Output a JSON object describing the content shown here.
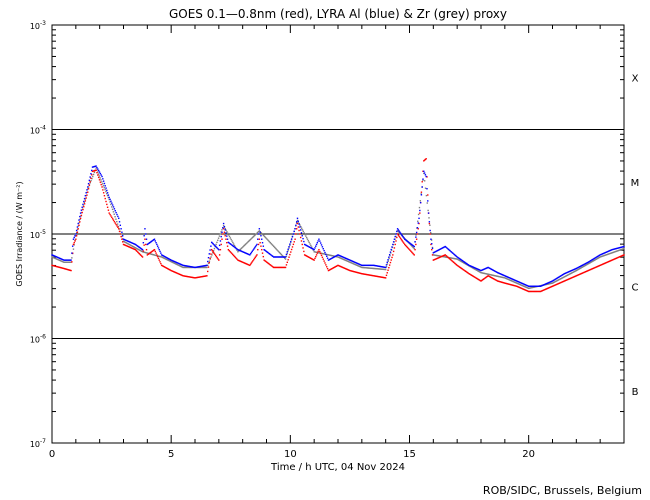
{
  "chart_data": {
    "type": "scatter",
    "title": "GOES 0.1—0.8nm (red), LYRA Al (blue) & Zr (grey) proxy",
    "xlabel": "Time / h UTC, 04 Nov 2024",
    "ylabel": "GOES Irradiance / (W m⁻²)",
    "credit": "ROB/SIDC, Brussels, Belgium",
    "xlim": [
      0,
      24
    ],
    "ylim_log10": [
      -7,
      -3
    ],
    "x_ticks": [
      {
        "value": 0,
        "label": "0"
      },
      {
        "value": 5,
        "label": "5"
      },
      {
        "value": 10,
        "label": "10"
      },
      {
        "value": 15,
        "label": "15"
      },
      {
        "value": 20,
        "label": "20"
      }
    ],
    "y_ticks": [
      {
        "exp": -3,
        "base": "10",
        "sup": "-3"
      },
      {
        "exp": -4,
        "base": "10",
        "sup": "-4"
      },
      {
        "exp": -5,
        "base": "10",
        "sup": "-5"
      },
      {
        "exp": -6,
        "base": "10",
        "sup": "-6"
      },
      {
        "exp": -7,
        "base": "10",
        "sup": "-7"
      }
    ],
    "flare_classes": [
      {
        "label": "X",
        "log_center": -3.5
      },
      {
        "label": "M",
        "log_center": -4.5
      },
      {
        "label": "C",
        "log_center": -5.5
      },
      {
        "label": "B",
        "log_center": -6.5
      }
    ],
    "class_boundaries_log": [
      -4,
      -5,
      -6
    ],
    "series": [
      {
        "name": "GOES 0.1-0.8nm",
        "color": "#ff0000",
        "points": [
          [
            0,
            -5.3
          ],
          [
            0.5,
            -5.33
          ],
          [
            0.8,
            -5.35
          ],
          [
            0.9,
            -5.1
          ],
          [
            1.0,
            -5.05
          ],
          [
            1.2,
            -4.85
          ],
          [
            1.5,
            -4.6
          ],
          [
            1.7,
            -4.4
          ],
          [
            1.85,
            -4.39
          ],
          [
            2.1,
            -4.55
          ],
          [
            2.4,
            -4.8
          ],
          [
            2.8,
            -4.95
          ],
          [
            3.0,
            -5.1
          ],
          [
            3.5,
            -5.15
          ],
          [
            3.8,
            -5.22
          ],
          [
            3.9,
            -5.05
          ],
          [
            4.0,
            -5.2
          ],
          [
            4.3,
            -5.15
          ],
          [
            4.6,
            -5.3
          ],
          [
            5.0,
            -5.35
          ],
          [
            5.5,
            -5.4
          ],
          [
            6.0,
            -5.42
          ],
          [
            6.5,
            -5.4
          ],
          [
            6.7,
            -5.15
          ],
          [
            7.0,
            -5.25
          ],
          [
            7.2,
            -4.95
          ],
          [
            7.4,
            -5.15
          ],
          [
            7.8,
            -5.25
          ],
          [
            8.3,
            -5.3
          ],
          [
            8.6,
            -5.2
          ],
          [
            8.7,
            -5.05
          ],
          [
            8.9,
            -5.25
          ],
          [
            9.3,
            -5.32
          ],
          [
            9.8,
            -5.32
          ],
          [
            10.2,
            -5.05
          ],
          [
            10.3,
            -4.9
          ],
          [
            10.6,
            -5.2
          ],
          [
            11.0,
            -5.25
          ],
          [
            11.2,
            -5.15
          ],
          [
            11.6,
            -5.35
          ],
          [
            12.0,
            -5.3
          ],
          [
            12.5,
            -5.35
          ],
          [
            13.0,
            -5.38
          ],
          [
            13.5,
            -5.4
          ],
          [
            14.0,
            -5.42
          ],
          [
            14.3,
            -5.2
          ],
          [
            14.5,
            -5.0
          ],
          [
            14.8,
            -5.1
          ],
          [
            15.2,
            -5.2
          ],
          [
            15.4,
            -4.9
          ],
          [
            15.6,
            -4.3
          ],
          [
            15.7,
            -4.28
          ],
          [
            15.8,
            -4.8
          ],
          [
            15.9,
            -5.1
          ],
          [
            16.0,
            -5.25
          ],
          [
            16.5,
            -5.2
          ],
          [
            17.0,
            -5.3
          ],
          [
            17.5,
            -5.38
          ],
          [
            18.0,
            -5.45
          ],
          [
            18.3,
            -5.4
          ],
          [
            18.7,
            -5.45
          ],
          [
            19.0,
            -5.47
          ],
          [
            19.5,
            -5.5
          ],
          [
            20.0,
            -5.55
          ],
          [
            20.5,
            -5.55
          ],
          [
            21.0,
            -5.5
          ],
          [
            21.5,
            -5.45
          ],
          [
            22.0,
            -5.4
          ],
          [
            22.5,
            -5.35
          ],
          [
            23.0,
            -5.3
          ],
          [
            23.5,
            -5.25
          ],
          [
            24.0,
            -5.2
          ]
        ]
      },
      {
        "name": "LYRA Al proxy",
        "color": "#0000ff",
        "points": [
          [
            0,
            -5.2
          ],
          [
            0.5,
            -5.25
          ],
          [
            0.8,
            -5.25
          ],
          [
            0.9,
            -5.05
          ],
          [
            1.0,
            -5.0
          ],
          [
            1.2,
            -4.8
          ],
          [
            1.5,
            -4.55
          ],
          [
            1.7,
            -4.36
          ],
          [
            1.85,
            -4.35
          ],
          [
            2.1,
            -4.45
          ],
          [
            2.4,
            -4.65
          ],
          [
            2.8,
            -4.85
          ],
          [
            3.0,
            -5.05
          ],
          [
            3.5,
            -5.1
          ],
          [
            3.8,
            -5.15
          ],
          [
            3.9,
            -4.95
          ],
          [
            4.0,
            -5.1
          ],
          [
            4.3,
            -5.05
          ],
          [
            4.6,
            -5.2
          ],
          [
            5.0,
            -5.25
          ],
          [
            5.5,
            -5.3
          ],
          [
            6.0,
            -5.32
          ],
          [
            6.5,
            -5.3
          ],
          [
            6.7,
            -5.08
          ],
          [
            7.0,
            -5.15
          ],
          [
            7.2,
            -4.9
          ],
          [
            7.4,
            -5.08
          ],
          [
            7.8,
            -5.15
          ],
          [
            8.3,
            -5.2
          ],
          [
            8.6,
            -5.1
          ],
          [
            8.7,
            -4.95
          ],
          [
            8.9,
            -5.15
          ],
          [
            9.3,
            -5.22
          ],
          [
            9.8,
            -5.22
          ],
          [
            10.2,
            -4.95
          ],
          [
            10.3,
            -4.85
          ],
          [
            10.6,
            -5.1
          ],
          [
            11.0,
            -5.15
          ],
          [
            11.2,
            -5.05
          ],
          [
            11.6,
            -5.25
          ],
          [
            12.0,
            -5.2
          ],
          [
            12.5,
            -5.25
          ],
          [
            13.0,
            -5.3
          ],
          [
            13.5,
            -5.3
          ],
          [
            14.0,
            -5.32
          ],
          [
            14.3,
            -5.1
          ],
          [
            14.5,
            -4.95
          ],
          [
            14.8,
            -5.05
          ],
          [
            15.2,
            -5.12
          ],
          [
            15.4,
            -4.85
          ],
          [
            15.6,
            -4.4
          ],
          [
            15.7,
            -4.45
          ],
          [
            15.8,
            -4.8
          ],
          [
            15.9,
            -5.05
          ],
          [
            16.0,
            -5.18
          ],
          [
            16.5,
            -5.12
          ],
          [
            17.0,
            -5.22
          ],
          [
            17.5,
            -5.3
          ],
          [
            18.0,
            -5.35
          ],
          [
            18.3,
            -5.32
          ],
          [
            18.7,
            -5.37
          ],
          [
            19.0,
            -5.4
          ],
          [
            19.5,
            -5.45
          ],
          [
            20.0,
            -5.5
          ],
          [
            20.5,
            -5.5
          ],
          [
            21.0,
            -5.45
          ],
          [
            21.5,
            -5.38
          ],
          [
            22.0,
            -5.33
          ],
          [
            22.5,
            -5.27
          ],
          [
            23.0,
            -5.2
          ],
          [
            23.5,
            -5.15
          ],
          [
            24.0,
            -5.12
          ]
        ]
      },
      {
        "name": "LYRA Zr proxy",
        "color": "#808080",
        "points": [
          [
            0,
            -5.22
          ],
          [
            0.5,
            -5.27
          ],
          [
            0.8,
            -5.27
          ],
          [
            1.0,
            -5.02
          ],
          [
            1.5,
            -4.57
          ],
          [
            1.85,
            -4.37
          ],
          [
            2.4,
            -4.67
          ],
          [
            3.0,
            -5.07
          ],
          [
            3.8,
            -5.17
          ],
          [
            4.6,
            -5.22
          ],
          [
            5.5,
            -5.32
          ],
          [
            6.5,
            -5.32
          ],
          [
            7.2,
            -4.92
          ],
          [
            7.8,
            -5.17
          ],
          [
            8.7,
            -4.97
          ],
          [
            9.8,
            -5.24
          ],
          [
            10.3,
            -4.87
          ],
          [
            11.0,
            -5.17
          ],
          [
            12.0,
            -5.22
          ],
          [
            13.0,
            -5.32
          ],
          [
            14.0,
            -5.34
          ],
          [
            14.5,
            -4.97
          ],
          [
            15.2,
            -5.14
          ],
          [
            15.6,
            -4.42
          ],
          [
            16.0,
            -5.2
          ],
          [
            17.0,
            -5.24
          ],
          [
            18.0,
            -5.37
          ],
          [
            19.0,
            -5.42
          ],
          [
            20.0,
            -5.52
          ],
          [
            21.0,
            -5.47
          ],
          [
            22.0,
            -5.35
          ],
          [
            23.0,
            -5.22
          ],
          [
            24.0,
            -5.14
          ]
        ]
      }
    ]
  }
}
